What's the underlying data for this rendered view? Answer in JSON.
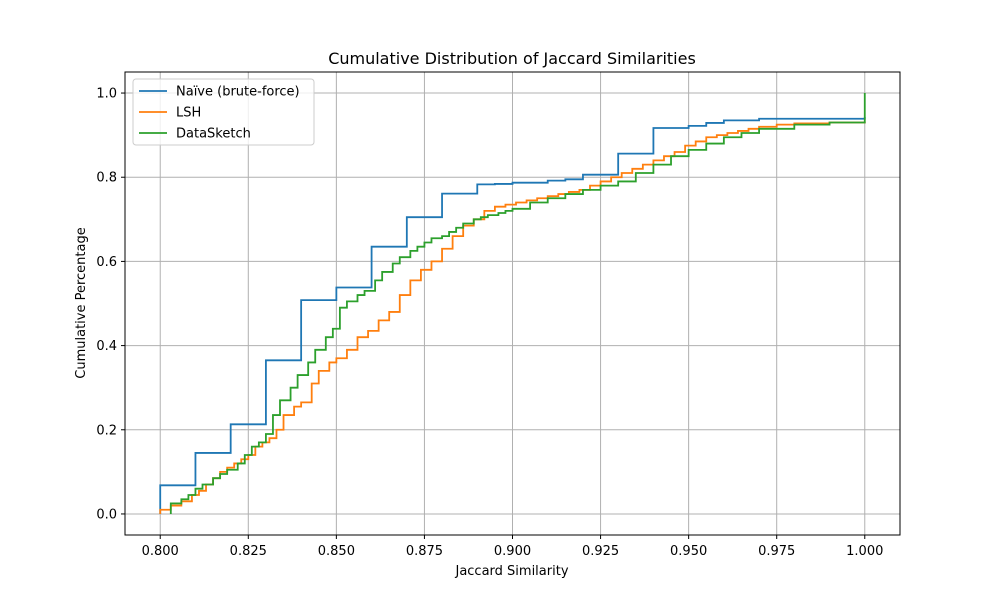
{
  "chart_data": {
    "type": "line",
    "title": "Cumulative Distribution of Jaccard Similarities",
    "xlabel": "Jaccard Similarity",
    "ylabel": "Cumulative Percentage",
    "xlim": [
      0.79,
      1.01
    ],
    "ylim": [
      -0.05,
      1.05
    ],
    "xticks": [
      0.8,
      0.825,
      0.85,
      0.875,
      0.9,
      0.925,
      0.95,
      0.975,
      1.0
    ],
    "xtick_labels": [
      "0.800",
      "0.825",
      "0.850",
      "0.875",
      "0.900",
      "0.925",
      "0.950",
      "0.975",
      "1.000"
    ],
    "yticks": [
      0.0,
      0.2,
      0.4,
      0.6,
      0.8,
      1.0
    ],
    "ytick_labels": [
      "0.0",
      "0.2",
      "0.4",
      "0.6",
      "0.8",
      "1.0"
    ],
    "grid": true,
    "legend_position": "top-left",
    "step": true,
    "series": [
      {
        "name": "Naïve (brute-force)",
        "color": "#1f77b4",
        "x": [
          0.8,
          0.8,
          0.81,
          0.82,
          0.83,
          0.84,
          0.85,
          0.86,
          0.87,
          0.88,
          0.89,
          0.895,
          0.9,
          0.91,
          0.915,
          0.92,
          0.93,
          0.94,
          0.95,
          0.955,
          0.96,
          0.97,
          1.0,
          1.0
        ],
        "y": [
          0.0,
          0.068,
          0.145,
          0.213,
          0.365,
          0.508,
          0.538,
          0.635,
          0.705,
          0.761,
          0.783,
          0.784,
          0.787,
          0.792,
          0.795,
          0.806,
          0.856,
          0.917,
          0.922,
          0.929,
          0.935,
          0.939,
          0.943,
          0.943
        ]
      },
      {
        "name": "LSH",
        "color": "#ff7f0e",
        "x": [
          0.8,
          0.8,
          0.803,
          0.806,
          0.809,
          0.811,
          0.813,
          0.815,
          0.817,
          0.819,
          0.821,
          0.823,
          0.825,
          0.827,
          0.829,
          0.831,
          0.833,
          0.835,
          0.838,
          0.84,
          0.843,
          0.845,
          0.848,
          0.85,
          0.853,
          0.856,
          0.859,
          0.862,
          0.865,
          0.868,
          0.871,
          0.874,
          0.877,
          0.88,
          0.883,
          0.886,
          0.889,
          0.892,
          0.895,
          0.898,
          0.901,
          0.904,
          0.907,
          0.91,
          0.913,
          0.916,
          0.919,
          0.922,
          0.925,
          0.928,
          0.931,
          0.934,
          0.937,
          0.94,
          0.943,
          0.946,
          0.949,
          0.952,
          0.955,
          0.958,
          0.961,
          0.964,
          0.967,
          0.97,
          0.975,
          0.98,
          0.99,
          1.0
        ],
        "y": [
          0.0,
          0.01,
          0.02,
          0.03,
          0.045,
          0.055,
          0.07,
          0.085,
          0.1,
          0.11,
          0.12,
          0.13,
          0.14,
          0.16,
          0.17,
          0.18,
          0.2,
          0.235,
          0.255,
          0.265,
          0.31,
          0.34,
          0.36,
          0.37,
          0.39,
          0.42,
          0.435,
          0.46,
          0.48,
          0.52,
          0.555,
          0.58,
          0.6,
          0.63,
          0.66,
          0.685,
          0.7,
          0.72,
          0.73,
          0.735,
          0.74,
          0.745,
          0.75,
          0.755,
          0.76,
          0.765,
          0.77,
          0.78,
          0.79,
          0.8,
          0.81,
          0.82,
          0.83,
          0.84,
          0.85,
          0.86,
          0.875,
          0.885,
          0.895,
          0.9,
          0.905,
          0.91,
          0.915,
          0.92,
          0.925,
          0.928,
          0.93,
          0.932
        ]
      },
      {
        "name": "DataSketch",
        "color": "#2ca02c",
        "x": [
          0.803,
          0.803,
          0.806,
          0.808,
          0.81,
          0.812,
          0.815,
          0.817,
          0.819,
          0.822,
          0.824,
          0.826,
          0.828,
          0.83,
          0.832,
          0.834,
          0.837,
          0.839,
          0.842,
          0.844,
          0.847,
          0.849,
          0.851,
          0.853,
          0.856,
          0.858,
          0.861,
          0.863,
          0.866,
          0.868,
          0.871,
          0.873,
          0.875,
          0.877,
          0.88,
          0.882,
          0.884,
          0.886,
          0.889,
          0.891,
          0.893,
          0.896,
          0.898,
          0.9,
          0.905,
          0.91,
          0.915,
          0.92,
          0.925,
          0.93,
          0.935,
          0.94,
          0.945,
          0.95,
          0.955,
          0.96,
          0.965,
          0.97,
          0.98,
          0.99,
          1.0,
          1.0
        ],
        "y": [
          0.0,
          0.025,
          0.035,
          0.045,
          0.06,
          0.07,
          0.085,
          0.095,
          0.105,
          0.12,
          0.14,
          0.16,
          0.17,
          0.19,
          0.235,
          0.27,
          0.3,
          0.33,
          0.36,
          0.39,
          0.42,
          0.44,
          0.49,
          0.505,
          0.52,
          0.53,
          0.555,
          0.575,
          0.595,
          0.61,
          0.625,
          0.635,
          0.645,
          0.655,
          0.66,
          0.67,
          0.68,
          0.69,
          0.7,
          0.705,
          0.71,
          0.715,
          0.72,
          0.725,
          0.74,
          0.75,
          0.76,
          0.77,
          0.78,
          0.79,
          0.81,
          0.83,
          0.85,
          0.865,
          0.88,
          0.895,
          0.905,
          0.915,
          0.925,
          0.93,
          0.932,
          1.0
        ]
      }
    ]
  }
}
